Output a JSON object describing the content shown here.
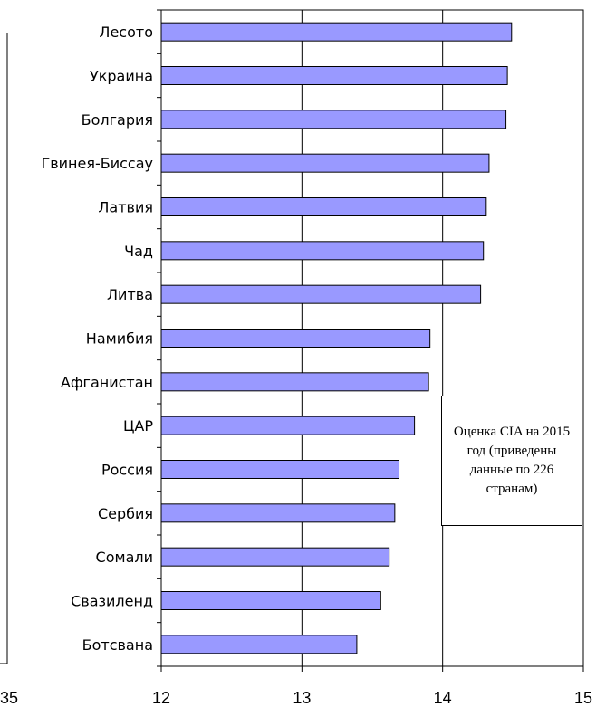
{
  "colors": {
    "bar_fill": "#9999FF",
    "bar_stroke": "#000000",
    "gridline": "#000000",
    "axis": "#000000",
    "background": "#FFFFFF"
  },
  "left_fragment": {
    "tick_text": "35"
  },
  "annotation": {
    "text": "Оценка CIA на 2015 год (приведены данные по 226 странам)"
  },
  "chart_data": {
    "type": "bar",
    "orientation": "horizontal",
    "categories": [
      "Лесото",
      "Украина",
      "Болгария",
      "Гвинея-Биссау",
      "Латвия",
      "Чад",
      "Литва",
      "Намибия",
      "Афганистан",
      "ЦАР",
      "Россия",
      "Сербия",
      "Сомали",
      "Свазиленд",
      "Ботсвана"
    ],
    "values": [
      14.49,
      14.46,
      14.45,
      14.33,
      14.31,
      14.29,
      14.27,
      13.91,
      13.9,
      13.8,
      13.69,
      13.66,
      13.62,
      13.56,
      13.39
    ],
    "xlim": [
      12,
      15
    ],
    "xticks": [
      "12",
      "13",
      "14",
      "15"
    ],
    "grid": "vertical major gridlines",
    "legend": "none",
    "title": "",
    "xlabel": "",
    "ylabel": ""
  }
}
